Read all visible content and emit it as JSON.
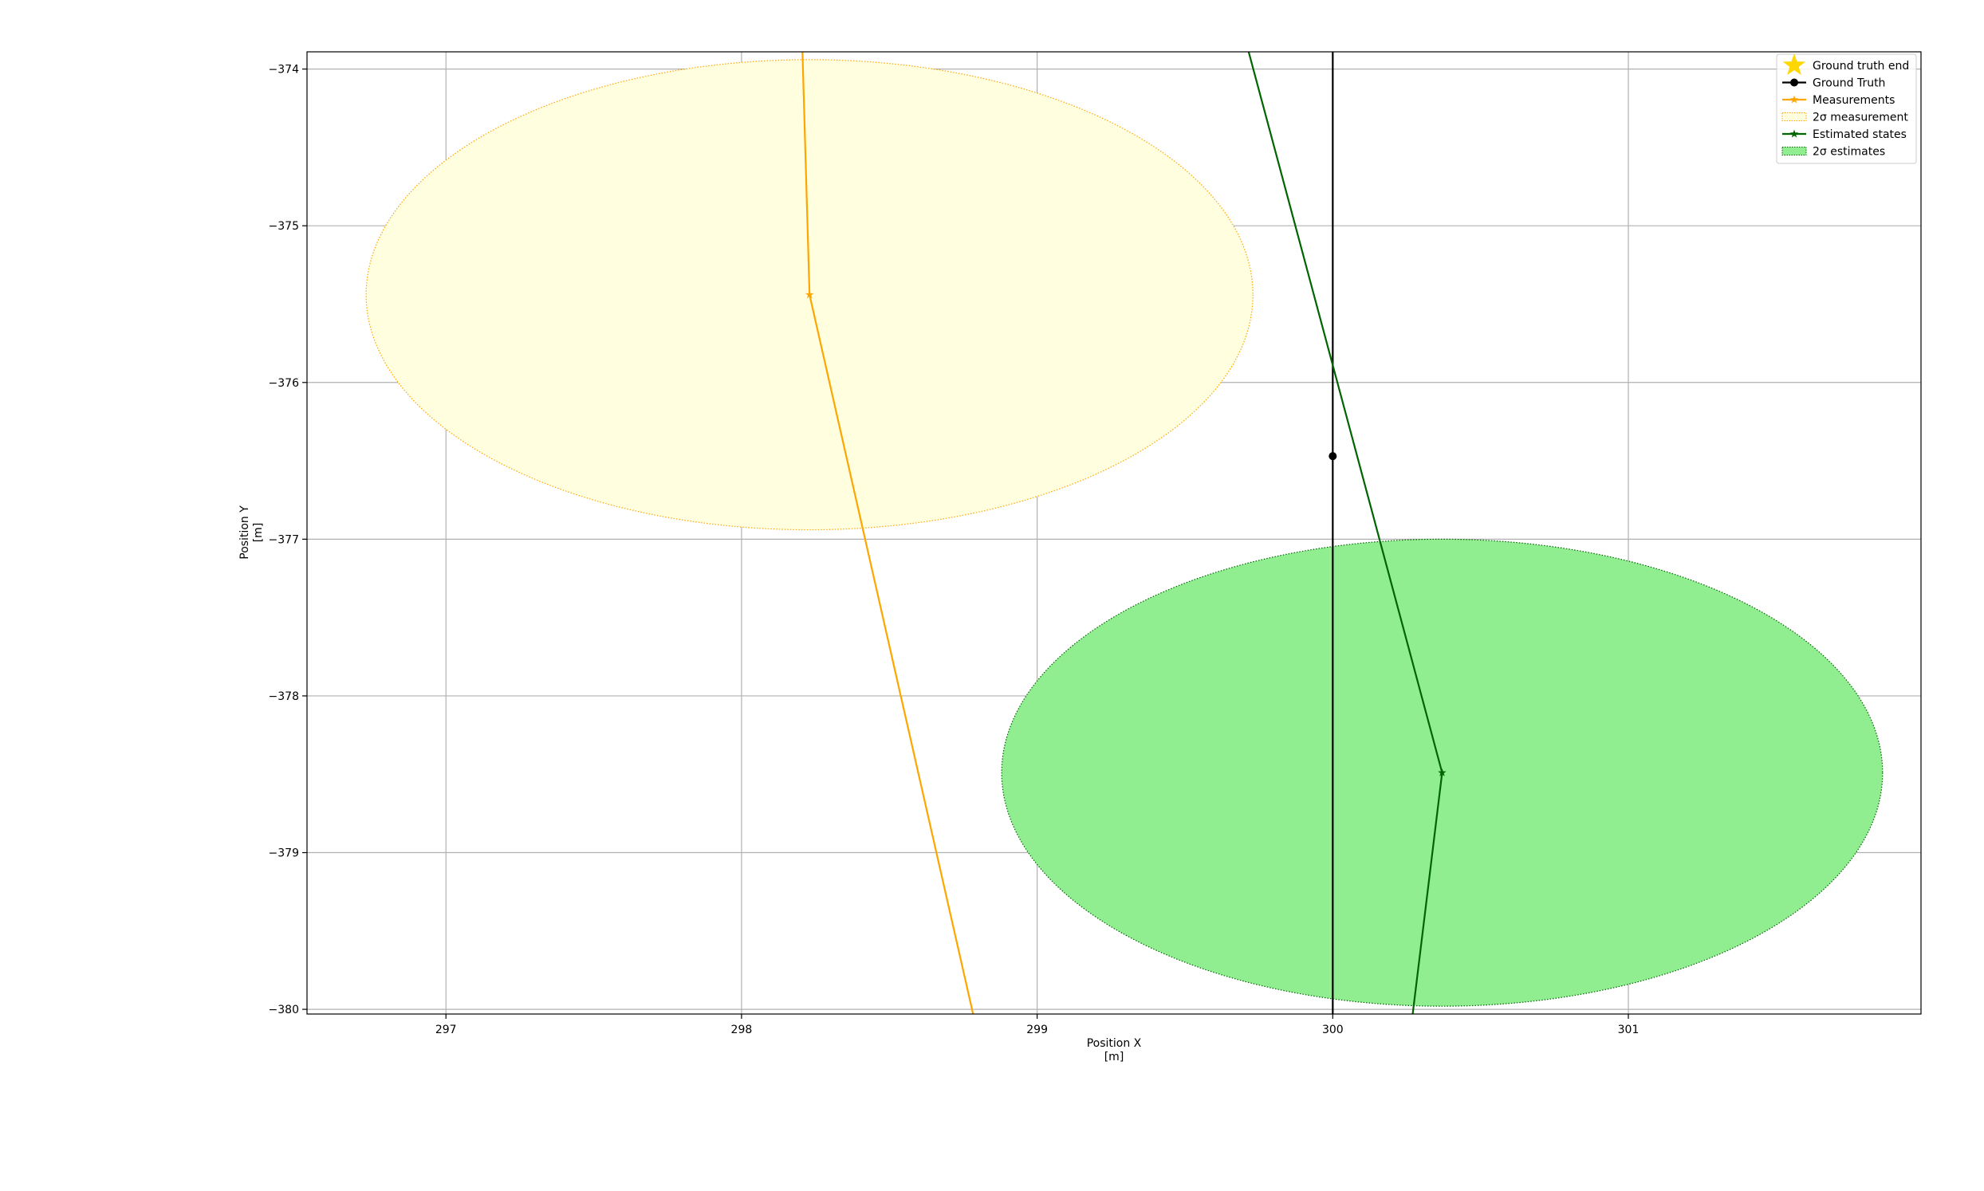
{
  "chart_data": {
    "type": "line",
    "xlabel": [
      "Position X",
      "[m]"
    ],
    "ylabel": [
      "Position Y",
      "[m]"
    ],
    "xlim": [
      296.53,
      301.99
    ],
    "ylim": [
      -380.03,
      -373.89
    ],
    "xticks": [
      297,
      298,
      299,
      300,
      301
    ],
    "yticks": [
      -374,
      -375,
      -376,
      -377,
      -378,
      -379,
      -380
    ],
    "xtick_labels": [
      "297",
      "298",
      "299",
      "300",
      "301"
    ],
    "ytick_labels": [
      "−374",
      "−375",
      "−376",
      "−377",
      "−378",
      "−379",
      "−380"
    ],
    "grid": true,
    "legend_position": "top-right",
    "legend": [
      {
        "label": "Ground truth end",
        "kind": "star",
        "color": "#ffd700"
      },
      {
        "label": "Ground Truth",
        "kind": "line-circle",
        "color": "#000000"
      },
      {
        "label": "Measurements",
        "kind": "line-star",
        "color": "#ffa500"
      },
      {
        "label": "2σ measurement",
        "kind": "patch",
        "color": "#ffa500",
        "fill": "#ffffe0"
      },
      {
        "label": "Estimated states",
        "kind": "line-star",
        "color": "#006400"
      },
      {
        "label": "2σ estimates",
        "kind": "patch",
        "color": "#006400",
        "fill": "#90ee90"
      }
    ],
    "series": [
      {
        "name": "Ground Truth",
        "color": "#000000",
        "marker": "circle",
        "x": [
          300.0,
          300.0,
          300.0
        ],
        "y": [
          -373.5,
          -376.47,
          -380.5
        ],
        "marker_indices": [
          1
        ]
      },
      {
        "name": "Measurements",
        "color": "#ffa500",
        "marker": "star",
        "x": [
          298.2,
          298.23,
          298.84
        ],
        "y": [
          -373.5,
          -375.44,
          -380.5
        ],
        "marker_indices": [
          1
        ]
      },
      {
        "name": "Estimated states",
        "color": "#006400",
        "marker": "star",
        "x": [
          299.66,
          300.37,
          300.24
        ],
        "y": [
          -373.5,
          -378.49,
          -380.5
        ],
        "marker_indices": [
          1
        ]
      }
    ],
    "ellipses": [
      {
        "name": "2σ measurement",
        "cx": 298.23,
        "cy": -375.44,
        "rx": 1.5,
        "ry": 1.5,
        "stroke": "#ffa500",
        "fill": "#ffffe0"
      },
      {
        "name": "2σ estimates",
        "cx": 300.37,
        "cy": -378.49,
        "rx": 1.49,
        "ry": 1.49,
        "stroke": "#006400",
        "fill": "#90ee90"
      }
    ]
  }
}
